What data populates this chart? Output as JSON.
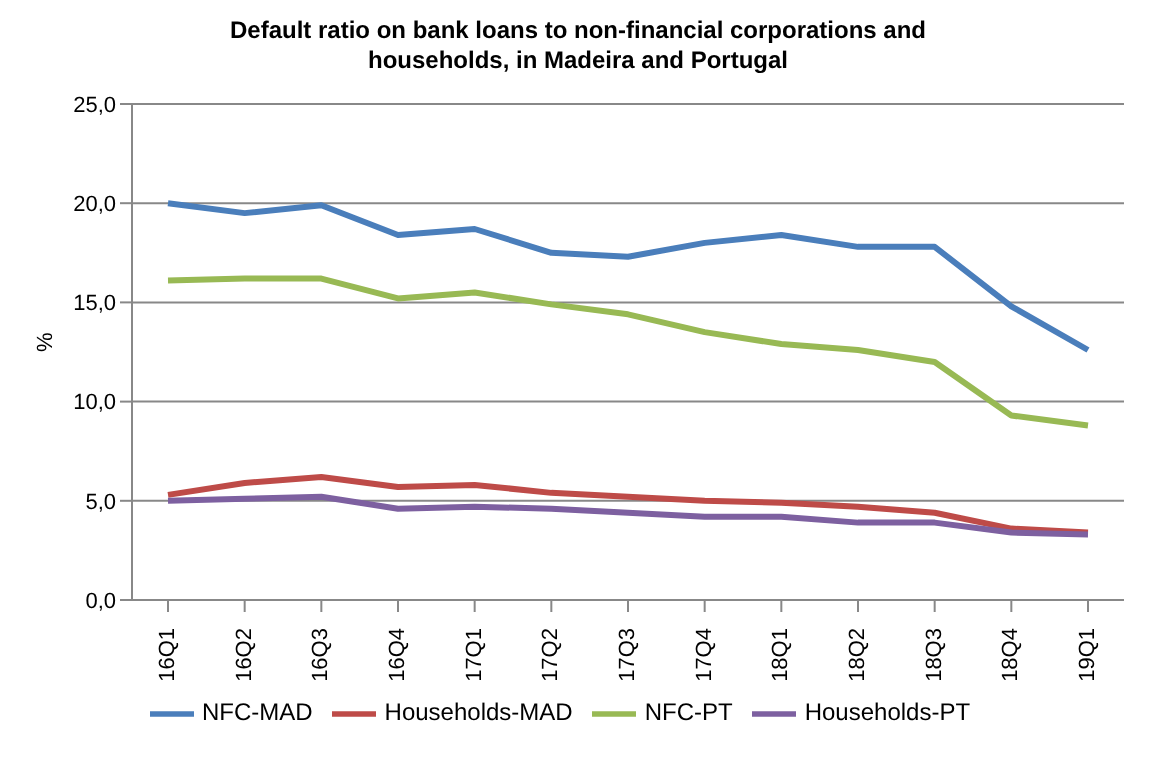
{
  "chart_data": {
    "type": "line",
    "title": "Default ratio on bank loans to non-financial corporations and households,  in Madeira and Portugal",
    "ylabel": "%",
    "categories": [
      "16Q1",
      "16Q2",
      "16Q3",
      "16Q4",
      "17Q1",
      "17Q2",
      "17Q3",
      "17Q4",
      "18Q1",
      "18Q2",
      "18Q3",
      "18Q4",
      "19Q1"
    ],
    "series": [
      {
        "name": "NFC-MAD",
        "color": "#4a7ebb",
        "values": [
          20.0,
          19.5,
          19.9,
          18.4,
          18.7,
          17.5,
          17.3,
          18.0,
          18.4,
          17.8,
          17.8,
          14.8,
          12.6
        ]
      },
      {
        "name": "Households-MAD",
        "color": "#be4b48",
        "values": [
          5.3,
          5.9,
          6.2,
          5.7,
          5.8,
          5.4,
          5.2,
          5.0,
          4.9,
          4.7,
          4.4,
          3.6,
          3.4
        ]
      },
      {
        "name": "NFC-PT",
        "color": "#98b954",
        "values": [
          16.1,
          16.2,
          16.2,
          15.2,
          15.5,
          14.9,
          14.4,
          13.5,
          12.9,
          12.6,
          12.0,
          9.3,
          8.8
        ]
      },
      {
        "name": "Households-PT",
        "color": "#7d60a0",
        "values": [
          5.0,
          5.1,
          5.2,
          4.6,
          4.7,
          4.6,
          4.4,
          4.2,
          4.2,
          3.9,
          3.9,
          3.4,
          3.3
        ]
      }
    ],
    "ylim": [
      0,
      25
    ],
    "yticks": [
      {
        "value": 0,
        "label": "0,0"
      },
      {
        "value": 5,
        "label": "5,0"
      },
      {
        "value": 10,
        "label": "10,0"
      },
      {
        "value": 15,
        "label": "15,0"
      },
      {
        "value": 20,
        "label": "20,0"
      },
      {
        "value": 25,
        "label": "25,0"
      }
    ],
    "grid": "y",
    "legend": "bottom",
    "marker": "none",
    "line_style": "solid"
  }
}
